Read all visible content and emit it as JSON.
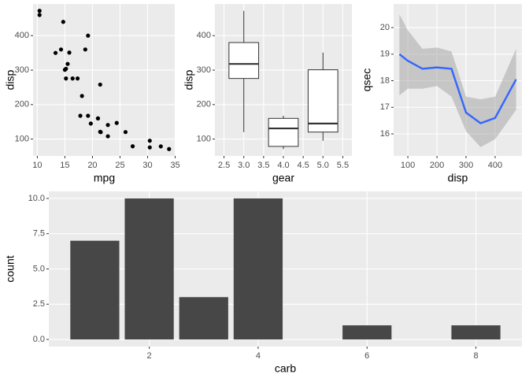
{
  "chart_data": [
    {
      "type": "scatter",
      "x_label": "mpg",
      "y_label": "disp",
      "color": "#000000",
      "x": [
        21.0,
        21.0,
        22.8,
        21.4,
        18.7,
        18.1,
        14.3,
        24.4,
        22.8,
        19.2,
        17.8,
        16.4,
        17.3,
        15.2,
        10.4,
        10.4,
        14.7,
        32.4,
        30.4,
        33.9,
        21.5,
        15.5,
        15.2,
        13.3,
        19.2,
        27.3,
        26.0,
        30.4,
        15.8,
        19.7,
        15.0,
        21.4
      ],
      "values": [
        160,
        160,
        108,
        258,
        360,
        225,
        360,
        146.7,
        140.8,
        167.6,
        167.6,
        275.8,
        275.8,
        275.8,
        472,
        460,
        440,
        78.7,
        75.7,
        71.1,
        120.1,
        318,
        304,
        350,
        400,
        79,
        120.3,
        95.1,
        351,
        145,
        301,
        121
      ],
      "xlim": [
        9.225,
        35.075
      ],
      "xticks": [
        10,
        15,
        20,
        25,
        30,
        35
      ],
      "ylim": [
        51.055,
        492.045
      ],
      "yticks": [
        100,
        200,
        300,
        400
      ],
      "grid": true
    },
    {
      "type": "boxplot",
      "x_label": "gear",
      "y_label": "disp",
      "color": "#333333",
      "x": [
        3,
        4,
        5
      ],
      "min": [
        120.1,
        71.1,
        95.1
      ],
      "q1": [
        275.8,
        78.7,
        120.3
      ],
      "median": [
        318,
        130.9,
        145
      ],
      "q3": [
        380,
        160,
        301
      ],
      "max": [
        472,
        167.6,
        351
      ],
      "xlim": [
        2.27,
        5.73
      ],
      "xticks": [
        {
          "value": 2.5,
          "label": "2.5"
        },
        {
          "value": 3,
          "label": "3.0"
        },
        {
          "value": 3.5,
          "label": "3.5"
        },
        {
          "value": 4,
          "label": "4.0"
        },
        {
          "value": 4.5,
          "label": "4.5"
        },
        {
          "value": 5,
          "label": "5.0"
        },
        {
          "value": 5.5,
          "label": "5.5"
        }
      ],
      "ylim": [
        51.055,
        492.045
      ],
      "yticks": [
        100,
        200,
        300,
        400
      ],
      "grid": true
    },
    {
      "type": "line",
      "x_label": "disp",
      "y_label": "qsec",
      "color": "#3366ff",
      "band_color": "#999999",
      "x": [
        71,
        100,
        150,
        200,
        250,
        300,
        350,
        400,
        472
      ],
      "values": [
        19.0,
        18.75,
        18.45,
        18.5,
        18.45,
        16.8,
        16.4,
        16.6,
        18.05
      ],
      "upper": [
        20.5,
        19.9,
        19.2,
        19.25,
        19.1,
        17.4,
        17.3,
        17.4,
        19.2
      ],
      "lower": [
        17.45,
        17.7,
        17.7,
        17.8,
        17.4,
        16.1,
        15.5,
        15.8,
        16.9
      ],
      "xlim": [
        51.055,
        492.045
      ],
      "xticks": [
        100,
        200,
        300,
        400
      ],
      "ylim": [
        15.17,
        20.89
      ],
      "yticks": [
        16,
        17,
        18,
        19,
        20
      ],
      "grid": true
    },
    {
      "type": "bar",
      "x_label": "carb",
      "y_label": "count",
      "color": "#474747",
      "x": [
        1,
        2,
        3,
        4,
        6,
        8
      ],
      "values": [
        7,
        10,
        3,
        10,
        1,
        1
      ],
      "xlim": [
        0.155,
        8.845
      ],
      "xticks": [
        2,
        4,
        6,
        8
      ],
      "ylim": [
        -0.5,
        10.5
      ],
      "yticks": [
        {
          "value": 0,
          "label": "0.0"
        },
        {
          "value": 2.5,
          "label": "2.5"
        },
        {
          "value": 5,
          "label": "5.0"
        },
        {
          "value": 7.5,
          "label": "7.5"
        },
        {
          "value": 10,
          "label": "10.0"
        }
      ],
      "grid": true
    }
  ]
}
